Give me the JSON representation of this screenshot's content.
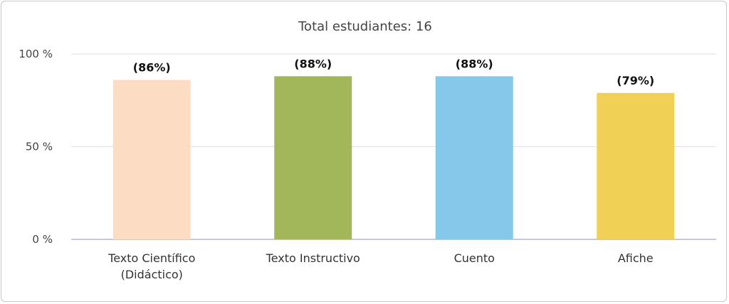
{
  "chart_data": {
    "type": "bar",
    "title": "Total estudiantes: 16",
    "categories": [
      [
        "Texto Científico",
        "(Didáctico)"
      ],
      [
        "Texto Instructivo"
      ],
      [
        "Cuento"
      ],
      [
        "Afiche"
      ]
    ],
    "values": [
      86,
      88,
      88,
      79
    ],
    "data_labels": [
      "(86%)",
      "(88%)",
      "(88%)",
      "(79%)"
    ],
    "colors": [
      "#fddcc4",
      "#a2b75a",
      "#86c8ea",
      "#f1d155"
    ],
    "ylim": [
      0,
      100
    ],
    "yticks": [
      {
        "value": 0,
        "label": "0 %"
      },
      {
        "value": 50,
        "label": "50 %"
      },
      {
        "value": 100,
        "label": "100 %"
      }
    ],
    "grid": true,
    "legend": "none",
    "xlabel": "",
    "ylabel": ""
  }
}
